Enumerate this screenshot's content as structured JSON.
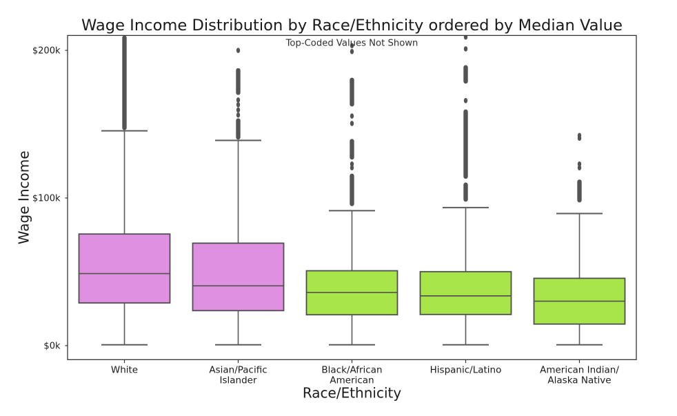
{
  "figure": {
    "background": "#ffffff"
  },
  "chart_data": {
    "type": "boxplot",
    "title": "Wage Income Distribution by Race/Ethnicity ordered by Median Value",
    "annotation": "Top-Coded Values Not Shown",
    "xlabel": "Race/Ethnicity",
    "ylabel": "Wage Income",
    "y_unit": "thousands of dollars",
    "ylim": [
      -9.5,
      210.1
    ],
    "yticks": [
      {
        "value": 0,
        "label": "$0k"
      },
      {
        "value": 100,
        "label": "$100k"
      },
      {
        "value": 200,
        "label": "$200k"
      }
    ],
    "legend": null,
    "grid": false,
    "colors": {
      "violet_box": "#e090e0",
      "green_box": "#a7e549",
      "box_edge": "#4f4f4f",
      "whisker": "#5a5a5a",
      "median": "#525252",
      "flier": "#545454",
      "spine": "#333333",
      "text": "#1a1a1a"
    },
    "groups": [
      {
        "label_lines": [
          "White"
        ],
        "slug": "white",
        "color_key": "violet_box",
        "q1": 28.9,
        "median": 48.8,
        "q3": 75.6,
        "whisker_low": 0.6,
        "whisker_high": 145.5,
        "outliers": [],
        "outlier_bands": [
          [
            146.0,
            210.1
          ]
        ]
      },
      {
        "label_lines": [
          "Asian/Pacific",
          "Islander"
        ],
        "slug": "asian-pacific-islander",
        "color_key": "violet_box",
        "q1": 23.7,
        "median": 40.5,
        "q3": 69.4,
        "whisker_low": 0.6,
        "whisker_high": 139.0,
        "outliers": [
          156.2,
          159.6,
          163.2,
          166.4,
          200.0
        ],
        "outlier_bands": [
          [
            139.6,
            154.0
          ],
          [
            169.8,
            188.0
          ]
        ]
      },
      {
        "label_lines": [
          "Black/African",
          "American"
        ],
        "slug": "black-african-american",
        "color_key": "green_box",
        "q1": 20.9,
        "median": 36.0,
        "q3": 50.7,
        "whisker_low": 0.6,
        "whisker_high": 91.4,
        "outliers": [
          120.5,
          123.0,
          150.5,
          155.5,
          199.2,
          203.2
        ],
        "outlier_bands": [
          [
            94.5,
            116.5
          ],
          [
            126.0,
            140.0
          ],
          [
            162.0,
            181.5
          ]
        ]
      },
      {
        "label_lines": [
          "Hispanic/Latino"
        ],
        "slug": "hispanic-latino",
        "color_key": "green_box",
        "q1": 21.1,
        "median": 33.7,
        "q3": 50.1,
        "whisker_low": 0.6,
        "whisker_high": 93.5,
        "outliers": [
          166.0,
          201.0,
          209.0
        ],
        "outlier_bands": [
          [
            97.5,
            110.5
          ],
          [
            113.0,
            160.0
          ],
          [
            177.5,
            190.0
          ]
        ]
      },
      {
        "label_lines": [
          "American Indian/",
          "Alaska Native"
        ],
        "slug": "american-indian-alaska-native",
        "color_key": "green_box",
        "q1": 14.6,
        "median": 30.1,
        "q3": 45.6,
        "whisker_low": 0.6,
        "whisker_high": 89.5,
        "outliers": [
          120.5,
          123.0,
          140.5,
          142.3
        ],
        "outlier_bands": [
          [
            97.0,
            112.5
          ]
        ]
      }
    ]
  }
}
